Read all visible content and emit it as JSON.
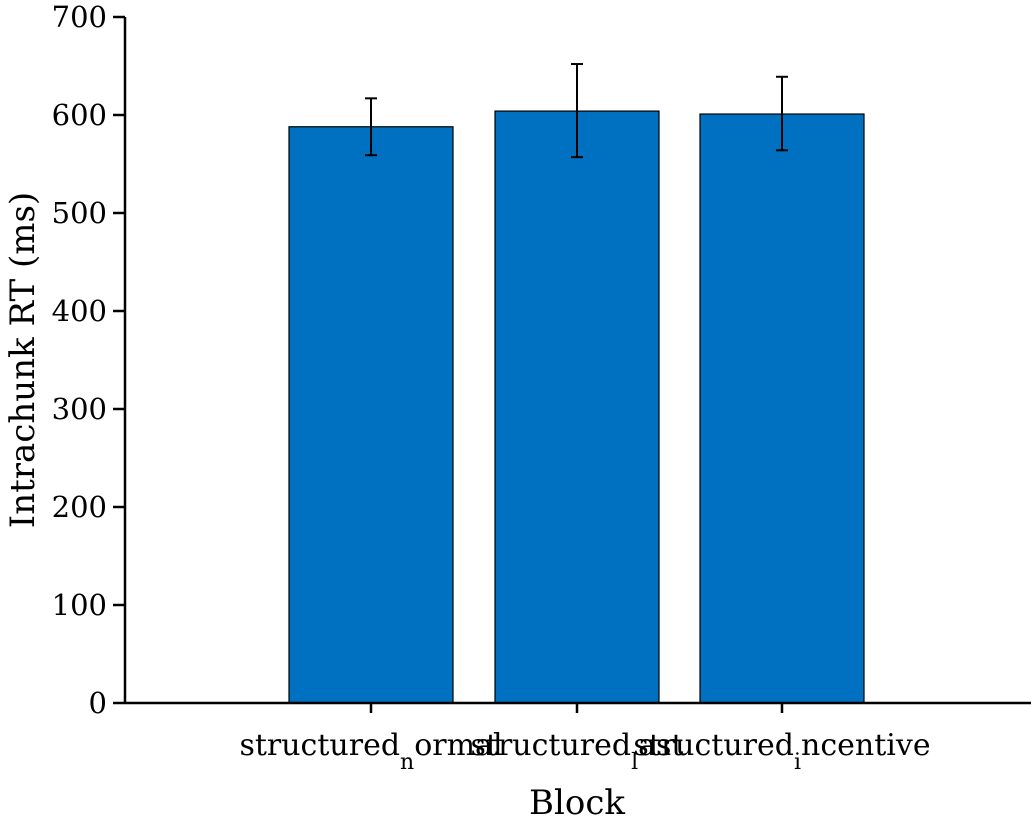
{
  "chart_data": {
    "type": "bar",
    "categories": [
      "structured_normal",
      "structured_last",
      "structured_incentive"
    ],
    "category_labels": [
      {
        "main": "structured",
        "sub": "n",
        "rest": "ormal"
      },
      {
        "main": "structured",
        "sub": "l",
        "rest": "ast"
      },
      {
        "main": "structured",
        "sub": "i",
        "rest": "ncentive"
      }
    ],
    "values": [
      588,
      604,
      601
    ],
    "error_low": [
      559,
      557,
      564
    ],
    "error_high": [
      617,
      652,
      639
    ],
    "xlabel": "Block",
    "ylabel": "Intrachunk RT (ms)",
    "ylim": [
      0,
      700
    ],
    "yticks": [
      0,
      100,
      200,
      300,
      400,
      500,
      600,
      700
    ],
    "bar_color": "#0070c0",
    "grid": false
  }
}
